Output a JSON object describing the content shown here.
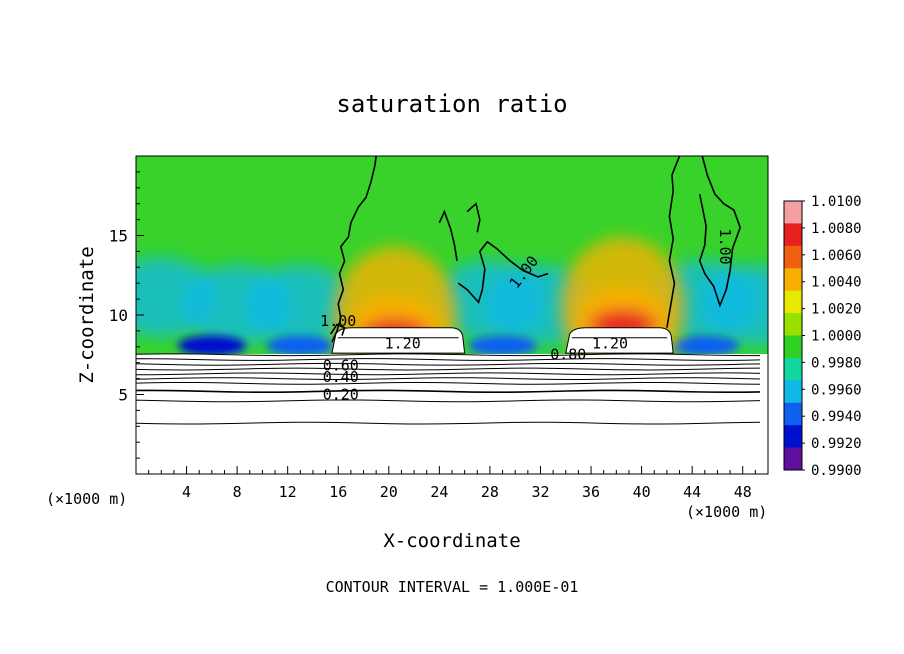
{
  "chart_data": {
    "type": "heatmap",
    "title": "saturation ratio",
    "xlabel": "X-coordinate",
    "ylabel": "Z-coordinate",
    "x_unit_left": "(×1000 m)",
    "x_unit_right": "(×1000 m)",
    "xlim": [
      0,
      50
    ],
    "ylim": [
      0,
      20
    ],
    "x_ticks": [
      4,
      8,
      12,
      16,
      20,
      24,
      28,
      32,
      36,
      40,
      44,
      48
    ],
    "y_ticks": [
      5,
      10,
      15
    ],
    "contour_interval_text": "CONTOUR INTERVAL = 1.000E-01",
    "colorbar": {
      "min": 0.99,
      "max": 1.01,
      "labels": [
        "1.0100",
        "1.0080",
        "1.0060",
        "1.0040",
        "1.0020",
        "1.0000",
        "0.9980",
        "0.9960",
        "0.9940",
        "0.9920",
        "0.9900"
      ],
      "colors": [
        "#f4a0a0",
        "#e82020",
        "#f06010",
        "#f8b000",
        "#e8e800",
        "#98e000",
        "#30d020",
        "#10d8a0",
        "#10b8e8",
        "#1060f0",
        "#0010d0",
        "#6010a0"
      ]
    },
    "contour_labels": [
      {
        "text": "1.20",
        "x": 21.1,
        "z": 7.9
      },
      {
        "text": "1.20",
        "x": 37.5,
        "z": 7.9
      },
      {
        "text": "0.80",
        "x": 34.2,
        "z": 7.2
      },
      {
        "text": "0.60",
        "x": 16.2,
        "z": 6.5
      },
      {
        "text": "0.40",
        "x": 16.2,
        "z": 5.8
      },
      {
        "text": "0.20",
        "x": 16.2,
        "z": 4.7
      },
      {
        "text": "1.00",
        "x": 31.0,
        "z": 12.5
      },
      {
        "text": "1.00",
        "x": 46.2,
        "z": 14.3
      },
      {
        "text": "1.00",
        "x": 16.0,
        "z": 9.3
      }
    ],
    "high_regions": [
      {
        "x": 20.5,
        "z": 9.4,
        "value": 1.007
      },
      {
        "x": 38.5,
        "z": 10.0,
        "value": 1.0075
      }
    ],
    "low_regions": [
      {
        "x": 6,
        "z": 8.2,
        "value": 0.9925
      },
      {
        "x": 13,
        "z": 8.2,
        "value": 0.9935
      },
      {
        "x": 29,
        "z": 8.2,
        "value": 0.9935
      },
      {
        "x": 45,
        "z": 8.2,
        "value": 0.9935
      }
    ],
    "saturated_caps": [
      {
        "x_start": 15.5,
        "x_end": 26.0,
        "z_top": 9.2
      },
      {
        "x_start": 34.0,
        "x_end": 42.5,
        "z_top": 9.2
      }
    ]
  }
}
